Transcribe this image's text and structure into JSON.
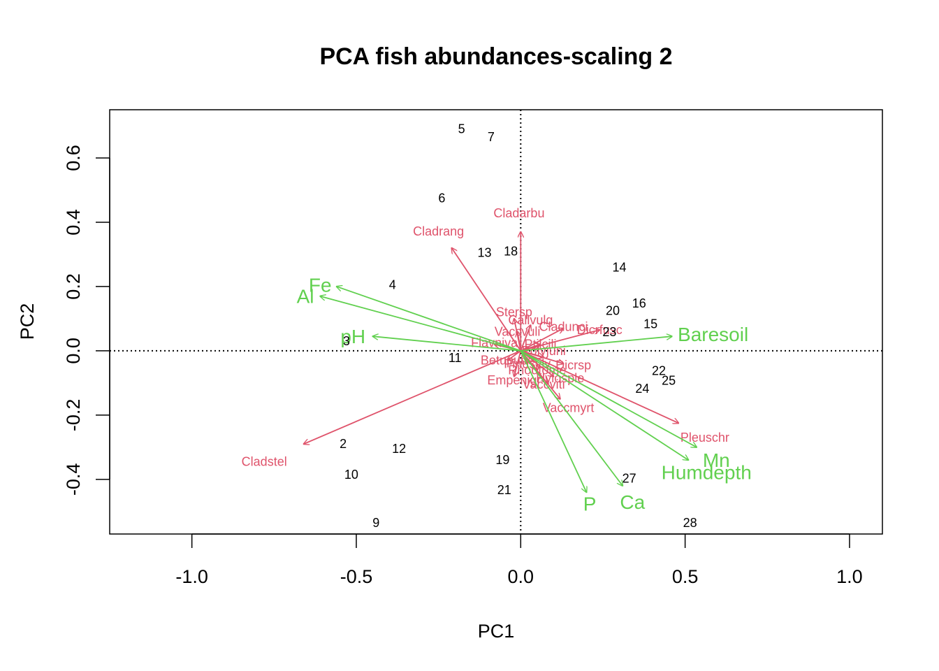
{
  "chart_data": {
    "type": "scatter",
    "title": "PCA fish abundances-scaling 2",
    "xlabel": "PC1",
    "ylabel": "PC2",
    "xlim": [
      -1.25,
      1.1
    ],
    "ylim": [
      -0.57,
      0.75
    ],
    "x_ticks": [
      -1.0,
      -0.5,
      0.0,
      0.5,
      1.0
    ],
    "x_tick_labels": [
      "-1.0",
      "-0.5",
      "0.0",
      "0.5",
      "1.0"
    ],
    "y_ticks": [
      -0.4,
      -0.2,
      0.0,
      0.2,
      0.4,
      0.6
    ],
    "y_tick_labels": [
      "-0.4",
      "-0.2",
      "0.0",
      "0.2",
      "0.4",
      "0.6"
    ],
    "reference_lines": {
      "x": 0,
      "y": 0,
      "style": "dotted"
    },
    "colors": {
      "species": "#DF536B",
      "environment": "#61D04F",
      "sites": "#000000"
    },
    "sites": [
      {
        "label": "5",
        "x": -0.18,
        "y": 0.69
      },
      {
        "label": "7",
        "x": -0.09,
        "y": 0.665
      },
      {
        "label": "6",
        "x": -0.24,
        "y": 0.475
      },
      {
        "label": "13",
        "x": -0.11,
        "y": 0.305
      },
      {
        "label": "18",
        "x": -0.03,
        "y": 0.31
      },
      {
        "label": "14",
        "x": 0.3,
        "y": 0.26
      },
      {
        "label": "4",
        "x": -0.39,
        "y": 0.205
      },
      {
        "label": "20",
        "x": 0.28,
        "y": 0.125
      },
      {
        "label": "16",
        "x": 0.36,
        "y": 0.148
      },
      {
        "label": "15",
        "x": 0.395,
        "y": 0.083
      },
      {
        "label": "23",
        "x": 0.27,
        "y": 0.058
      },
      {
        "label": "3",
        "x": -0.53,
        "y": 0.03
      },
      {
        "label": "11",
        "x": -0.2,
        "y": -0.022
      },
      {
        "label": "22",
        "x": 0.42,
        "y": -0.062
      },
      {
        "label": "25",
        "x": 0.45,
        "y": -0.093
      },
      {
        "label": "24",
        "x": 0.37,
        "y": -0.118
      },
      {
        "label": "2",
        "x": -0.54,
        "y": -0.29
      },
      {
        "label": "12",
        "x": -0.37,
        "y": -0.305
      },
      {
        "label": "10",
        "x": -0.515,
        "y": -0.385
      },
      {
        "label": "19",
        "x": -0.055,
        "y": -0.34
      },
      {
        "label": "27",
        "x": 0.33,
        "y": -0.397
      },
      {
        "label": "21",
        "x": -0.05,
        "y": -0.433
      },
      {
        "label": "9",
        "x": -0.44,
        "y": -0.535
      },
      {
        "label": "28",
        "x": 0.515,
        "y": -0.535
      }
    ],
    "species": [
      {
        "name": "Cladarbu",
        "x": 0.0,
        "y": 0.37,
        "label_x": -0.005,
        "label_y": 0.428
      },
      {
        "name": "Cladrang",
        "x": -0.21,
        "y": 0.32,
        "label_x": -0.25,
        "label_y": 0.372
      },
      {
        "name": "Cladstel",
        "x": -0.66,
        "y": -0.29,
        "label_x": -0.78,
        "label_y": -0.345
      },
      {
        "name": "Pleuschr",
        "x": 0.48,
        "y": -0.225,
        "label_x": 0.56,
        "label_y": -0.27
      },
      {
        "name": "Vaccmyrt",
        "x": 0.12,
        "y": -0.15,
        "label_x": 0.145,
        "label_y": -0.177
      },
      {
        "name": "Dicrfusc",
        "x": 0.24,
        "y": 0.065,
        "label_x": 0.24,
        "label_y": 0.065
      },
      {
        "name": "Stersp",
        "x": -0.02,
        "y": 0.1,
        "label_x": -0.02,
        "label_y": 0.12
      },
      {
        "name": "Callvulg",
        "x": 0.03,
        "y": 0.08,
        "label_x": 0.03,
        "label_y": 0.095
      },
      {
        "name": "Vaccvuli",
        "x": -0.01,
        "y": 0.06,
        "label_x": -0.01,
        "label_y": 0.06
      },
      {
        "name": "Cladunci",
        "x": 0.13,
        "y": 0.07,
        "label_x": 0.13,
        "label_y": 0.075
      },
      {
        "name": "Flavniva",
        "x": -0.08,
        "y": 0.02,
        "label_x": -0.08,
        "label_y": 0.025
      },
      {
        "name": "Polyjuni",
        "x": 0.07,
        "y": -0.02,
        "label_x": 0.07,
        "label_y": 0.0
      },
      {
        "name": "Dicrsp",
        "x": 0.13,
        "y": -0.04,
        "label_x": 0.16,
        "label_y": -0.045
      },
      {
        "name": "Hylosple",
        "x": 0.1,
        "y": -0.08,
        "label_x": 0.12,
        "label_y": -0.085
      },
      {
        "name": "Empenigr",
        "x": -0.02,
        "y": -0.08,
        "label_x": -0.02,
        "label_y": -0.092
      },
      {
        "name": "Vaccviti",
        "x": 0.08,
        "y": -0.1,
        "label_x": 0.07,
        "label_y": -0.105
      },
      {
        "name": "Betupube",
        "x": -0.04,
        "y": -0.03,
        "label_x": -0.04,
        "label_y": -0.03
      },
      {
        "name": "Pinusylv",
        "x": 0.02,
        "y": -0.04,
        "label_x": 0.02,
        "label_y": -0.04
      },
      {
        "name": "Rhodtome",
        "x": 0.05,
        "y": -0.06,
        "label_x": 0.05,
        "label_y": -0.06
      },
      {
        "name": "Ptilcili",
        "x": 0.06,
        "y": 0.02,
        "label_x": 0.06,
        "label_y": 0.02
      }
    ],
    "environment": [
      {
        "name": "Fe",
        "x": -0.56,
        "y": 0.2,
        "label_x": -0.61,
        "label_y": 0.205
      },
      {
        "name": "Al",
        "x": -0.61,
        "y": 0.17,
        "label_x": -0.655,
        "label_y": 0.17
      },
      {
        "name": "pH",
        "x": -0.45,
        "y": 0.045,
        "label_x": -0.51,
        "label_y": 0.045
      },
      {
        "name": "Baresoil",
        "x": 0.46,
        "y": 0.045,
        "label_x": 0.585,
        "label_y": 0.052
      },
      {
        "name": "Mn",
        "x": 0.535,
        "y": -0.3,
        "label_x": 0.595,
        "label_y": -0.34
      },
      {
        "name": "Humdepth",
        "x": 0.51,
        "y": -0.34,
        "label_x": 0.565,
        "label_y": -0.378
      },
      {
        "name": "P",
        "x": 0.2,
        "y": -0.44,
        "label_x": 0.21,
        "label_y": -0.475
      },
      {
        "name": "Ca",
        "x": 0.31,
        "y": -0.42,
        "label_x": 0.34,
        "label_y": -0.47
      }
    ]
  }
}
